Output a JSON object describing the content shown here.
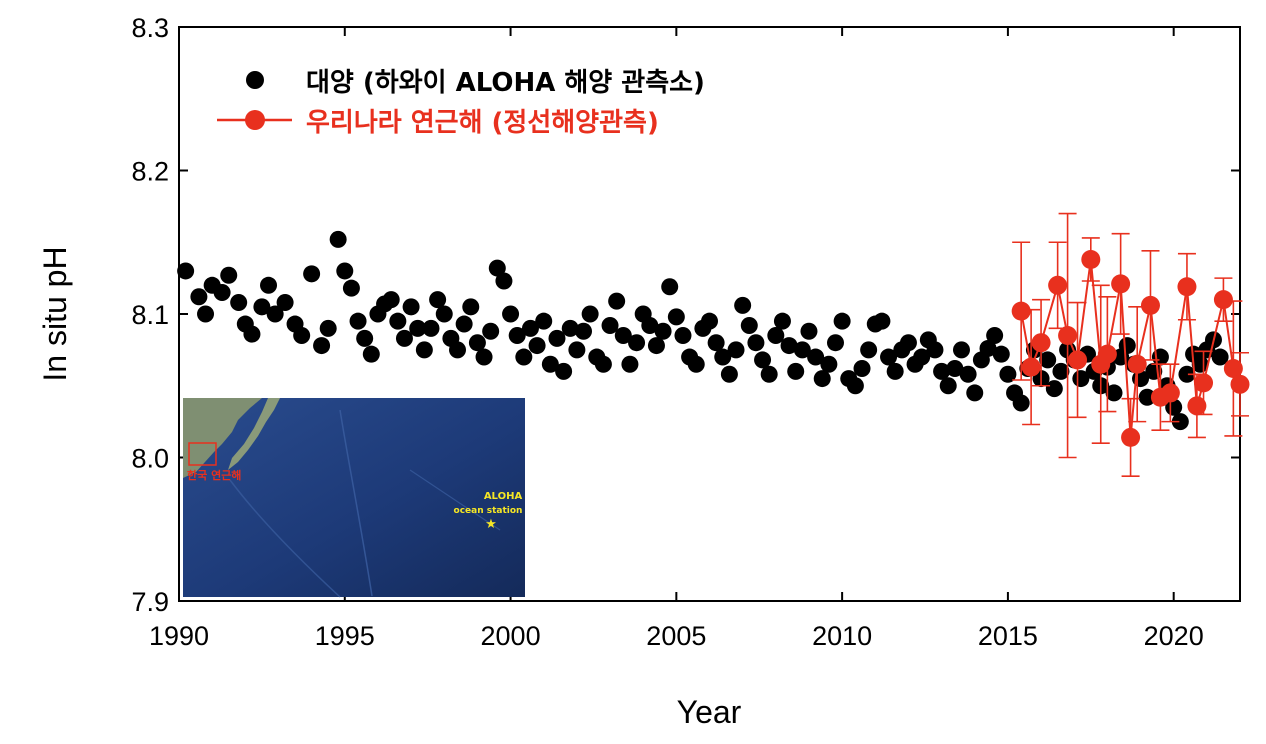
{
  "chart_data": {
    "type": "scatter",
    "xlabel": "Year",
    "ylabel": "In situ pH",
    "xlim": [
      1990,
      2022
    ],
    "ylim": [
      7.9,
      8.3
    ],
    "xticks": [
      "1990",
      "1995",
      "2000",
      "2005",
      "2010",
      "2015",
      "2020"
    ],
    "yticks": [
      "7.9",
      "8.0",
      "8.1",
      "8.2",
      "8.3"
    ],
    "legend_position": "top-left",
    "series": [
      {
        "name": "대양 (하와이 ALOHA 해양 관측소)",
        "color": "#000000",
        "marker": "circle",
        "points": [
          [
            1990.2,
            8.13
          ],
          [
            1990.6,
            8.112
          ],
          [
            1990.8,
            8.1
          ],
          [
            1991.0,
            8.12
          ],
          [
            1991.3,
            8.115
          ],
          [
            1991.5,
            8.127
          ],
          [
            1991.8,
            8.108
          ],
          [
            1992.0,
            8.093
          ],
          [
            1992.2,
            8.086
          ],
          [
            1992.5,
            8.105
          ],
          [
            1992.7,
            8.12
          ],
          [
            1992.9,
            8.1
          ],
          [
            1993.2,
            8.108
          ],
          [
            1993.5,
            8.093
          ],
          [
            1993.7,
            8.085
          ],
          [
            1994.0,
            8.128
          ],
          [
            1994.3,
            8.078
          ],
          [
            1994.5,
            8.09
          ],
          [
            1994.8,
            8.152
          ],
          [
            1995.0,
            8.13
          ],
          [
            1995.2,
            8.118
          ],
          [
            1995.4,
            8.095
          ],
          [
            1995.6,
            8.083
          ],
          [
            1995.8,
            8.072
          ],
          [
            1996.0,
            8.1
          ],
          [
            1996.2,
            8.107
          ],
          [
            1996.4,
            8.11
          ],
          [
            1996.6,
            8.095
          ],
          [
            1996.8,
            8.083
          ],
          [
            1997.0,
            8.105
          ],
          [
            1997.2,
            8.09
          ],
          [
            1997.4,
            8.075
          ],
          [
            1997.6,
            8.09
          ],
          [
            1997.8,
            8.11
          ],
          [
            1998.0,
            8.1
          ],
          [
            1998.2,
            8.083
          ],
          [
            1998.4,
            8.075
          ],
          [
            1998.6,
            8.093
          ],
          [
            1998.8,
            8.105
          ],
          [
            1999.0,
            8.08
          ],
          [
            1999.2,
            8.07
          ],
          [
            1999.4,
            8.088
          ],
          [
            1999.6,
            8.132
          ],
          [
            1999.8,
            8.123
          ],
          [
            2000.0,
            8.1
          ],
          [
            2000.2,
            8.085
          ],
          [
            2000.4,
            8.07
          ],
          [
            2000.6,
            8.09
          ],
          [
            2000.8,
            8.078
          ],
          [
            2001.0,
            8.095
          ],
          [
            2001.2,
            8.065
          ],
          [
            2001.4,
            8.083
          ],
          [
            2001.6,
            8.06
          ],
          [
            2001.8,
            8.09
          ],
          [
            2002.0,
            8.075
          ],
          [
            2002.2,
            8.088
          ],
          [
            2002.4,
            8.1
          ],
          [
            2002.6,
            8.07
          ],
          [
            2002.8,
            8.065
          ],
          [
            2003.0,
            8.092
          ],
          [
            2003.2,
            8.109
          ],
          [
            2003.4,
            8.085
          ],
          [
            2003.6,
            8.065
          ],
          [
            2003.8,
            8.08
          ],
          [
            2004.0,
            8.1
          ],
          [
            2004.2,
            8.092
          ],
          [
            2004.4,
            8.078
          ],
          [
            2004.6,
            8.088
          ],
          [
            2004.8,
            8.119
          ],
          [
            2005.0,
            8.098
          ],
          [
            2005.2,
            8.085
          ],
          [
            2005.4,
            8.07
          ],
          [
            2005.6,
            8.065
          ],
          [
            2005.8,
            8.09
          ],
          [
            2006.0,
            8.095
          ],
          [
            2006.2,
            8.08
          ],
          [
            2006.4,
            8.07
          ],
          [
            2006.6,
            8.058
          ],
          [
            2006.8,
            8.075
          ],
          [
            2007.0,
            8.106
          ],
          [
            2007.2,
            8.092
          ],
          [
            2007.4,
            8.08
          ],
          [
            2007.6,
            8.068
          ],
          [
            2007.8,
            8.058
          ],
          [
            2008.0,
            8.085
          ],
          [
            2008.2,
            8.095
          ],
          [
            2008.4,
            8.078
          ],
          [
            2008.6,
            8.06
          ],
          [
            2008.8,
            8.075
          ],
          [
            2009.0,
            8.088
          ],
          [
            2009.2,
            8.07
          ],
          [
            2009.4,
            8.055
          ],
          [
            2009.6,
            8.065
          ],
          [
            2009.8,
            8.08
          ],
          [
            2010.0,
            8.095
          ],
          [
            2010.2,
            8.055
          ],
          [
            2010.4,
            8.05
          ],
          [
            2010.6,
            8.062
          ],
          [
            2010.8,
            8.075
          ],
          [
            2011.0,
            8.093
          ],
          [
            2011.2,
            8.095
          ],
          [
            2011.4,
            8.07
          ],
          [
            2011.6,
            8.06
          ],
          [
            2011.8,
            8.075
          ],
          [
            2012.0,
            8.08
          ],
          [
            2012.2,
            8.065
          ],
          [
            2012.4,
            8.07
          ],
          [
            2012.6,
            8.082
          ],
          [
            2012.8,
            8.075
          ],
          [
            2013.0,
            8.06
          ],
          [
            2013.2,
            8.05
          ],
          [
            2013.4,
            8.062
          ],
          [
            2013.6,
            8.075
          ],
          [
            2013.8,
            8.058
          ],
          [
            2014.0,
            8.045
          ],
          [
            2014.2,
            8.068
          ],
          [
            2014.4,
            8.076
          ],
          [
            2014.6,
            8.085
          ],
          [
            2014.8,
            8.072
          ],
          [
            2015.0,
            8.058
          ],
          [
            2015.2,
            8.045
          ],
          [
            2015.4,
            8.038
          ],
          [
            2015.6,
            8.062
          ],
          [
            2015.8,
            8.075
          ],
          [
            2016.0,
            8.055
          ],
          [
            2016.2,
            8.068
          ],
          [
            2016.4,
            8.048
          ],
          [
            2016.6,
            8.06
          ],
          [
            2016.8,
            8.075
          ],
          [
            2017.0,
            8.068
          ],
          [
            2017.2,
            8.055
          ],
          [
            2017.4,
            8.072
          ],
          [
            2017.6,
            8.06
          ],
          [
            2017.8,
            8.05
          ],
          [
            2018.0,
            8.063
          ],
          [
            2018.2,
            8.045
          ],
          [
            2018.4,
            8.07
          ],
          [
            2018.6,
            8.078
          ],
          [
            2018.8,
            8.065
          ],
          [
            2019.0,
            8.055
          ],
          [
            2019.2,
            8.042
          ],
          [
            2019.4,
            8.06
          ],
          [
            2019.6,
            8.07
          ],
          [
            2019.8,
            8.05
          ],
          [
            2020.0,
            8.035
          ],
          [
            2020.2,
            8.025
          ],
          [
            2020.4,
            8.058
          ],
          [
            2020.6,
            8.072
          ],
          [
            2020.8,
            8.065
          ],
          [
            2021.0,
            8.075
          ],
          [
            2021.2,
            8.082
          ],
          [
            2021.4,
            8.07
          ]
        ]
      },
      {
        "name": "우리나라 연근해 (정선해양관측)",
        "color": "#e8301e",
        "marker": "circle-line-errorbar",
        "points": [
          {
            "x": 2015.4,
            "y": 8.102,
            "err": 0.048
          },
          {
            "x": 2015.7,
            "y": 8.063,
            "err": 0.04
          },
          {
            "x": 2016.0,
            "y": 8.08,
            "err": 0.03
          },
          {
            "x": 2016.5,
            "y": 8.12,
            "err": 0.03
          },
          {
            "x": 2016.8,
            "y": 8.085,
            "err": 0.085
          },
          {
            "x": 2017.1,
            "y": 8.068,
            "err": 0.04
          },
          {
            "x": 2017.5,
            "y": 8.138,
            "err": 0.015
          },
          {
            "x": 2017.8,
            "y": 8.065,
            "err": 0.055
          },
          {
            "x": 2018.0,
            "y": 8.072,
            "err": 0.04
          },
          {
            "x": 2018.4,
            "y": 8.121,
            "err": 0.035
          },
          {
            "x": 2018.7,
            "y": 8.014,
            "err": 0.027
          },
          {
            "x": 2018.9,
            "y": 8.065,
            "err": 0.04
          },
          {
            "x": 2019.3,
            "y": 8.106,
            "err": 0.038
          },
          {
            "x": 2019.6,
            "y": 8.042,
            "err": 0.023
          },
          {
            "x": 2019.9,
            "y": 8.045,
            "err": 0.02
          },
          {
            "x": 2020.4,
            "y": 8.119,
            "err": 0.023
          },
          {
            "x": 2020.7,
            "y": 8.036,
            "err": 0.022
          },
          {
            "x": 2020.9,
            "y": 8.052,
            "err": 0.022
          },
          {
            "x": 2021.5,
            "y": 8.11,
            "err": 0.015
          },
          {
            "x": 2021.8,
            "y": 8.062,
            "err": 0.047
          },
          {
            "x": 2022.0,
            "y": 8.051,
            "err": 0.022
          }
        ]
      }
    ]
  },
  "inset_map": {
    "region_label": "한국 연근해",
    "station_label_1": "ALOHA",
    "station_label_2": "ocean station",
    "region_color": "#e8301e",
    "station_color": "#f5e625",
    "ocean_color": "#1d3a78"
  }
}
